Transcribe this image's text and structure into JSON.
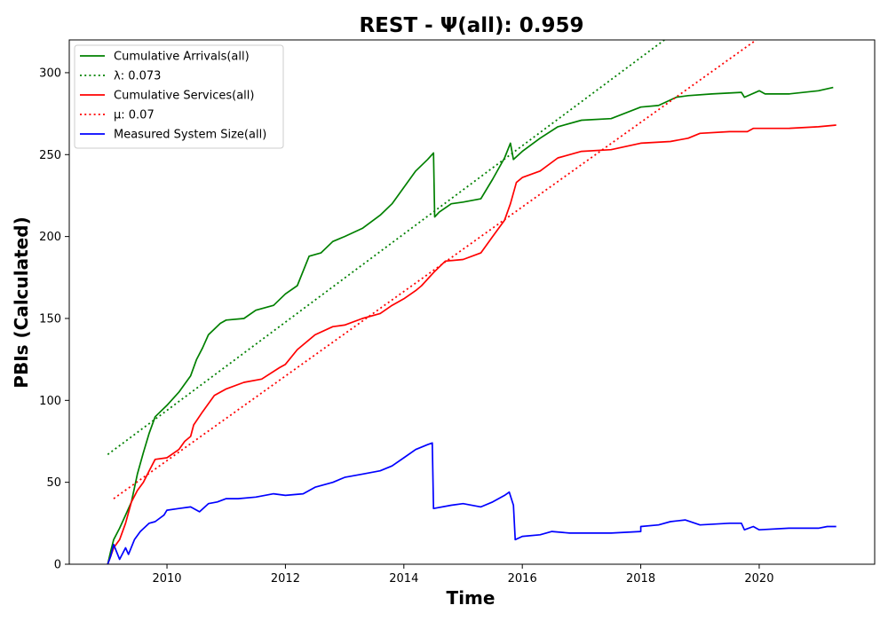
{
  "chart_data": {
    "type": "line",
    "title": "REST -  Ψ(all): 0.959",
    "xlabel": "Time",
    "ylabel": "PBIs (Calculated)",
    "xlim": [
      2008.35,
      2021.95
    ],
    "ylim": [
      0,
      320
    ],
    "x_ticks": [
      2010,
      2012,
      2014,
      2016,
      2018,
      2020
    ],
    "y_ticks": [
      0,
      50,
      100,
      150,
      200,
      250,
      300
    ],
    "grid": false,
    "legend_position": "top-left",
    "series": [
      {
        "name": "Cumulative Arrivals(all)",
        "label": "Cumulative Arrivals(all)",
        "color": "#008000",
        "style": "solid",
        "points": [
          [
            2009.0,
            0
          ],
          [
            2009.05,
            8
          ],
          [
            2009.1,
            15
          ],
          [
            2009.2,
            22
          ],
          [
            2009.3,
            30
          ],
          [
            2009.4,
            38
          ],
          [
            2009.5,
            55
          ],
          [
            2009.6,
            68
          ],
          [
            2009.7,
            80
          ],
          [
            2009.8,
            90
          ],
          [
            2010.0,
            97
          ],
          [
            2010.2,
            105
          ],
          [
            2010.4,
            115
          ],
          [
            2010.5,
            125
          ],
          [
            2010.6,
            132
          ],
          [
            2010.7,
            140
          ],
          [
            2010.9,
            147
          ],
          [
            2011.0,
            149
          ],
          [
            2011.3,
            150
          ],
          [
            2011.5,
            155
          ],
          [
            2011.8,
            158
          ],
          [
            2012.0,
            165
          ],
          [
            2012.2,
            170
          ],
          [
            2012.4,
            188
          ],
          [
            2012.6,
            190
          ],
          [
            2012.8,
            197
          ],
          [
            2013.0,
            200
          ],
          [
            2013.3,
            205
          ],
          [
            2013.6,
            213
          ],
          [
            2013.8,
            220
          ],
          [
            2014.0,
            230
          ],
          [
            2014.2,
            240
          ],
          [
            2014.4,
            247
          ],
          [
            2014.5,
            251
          ],
          [
            2014.52,
            212
          ],
          [
            2014.6,
            215
          ],
          [
            2014.8,
            220
          ],
          [
            2015.0,
            221
          ],
          [
            2015.3,
            223
          ],
          [
            2015.5,
            235
          ],
          [
            2015.7,
            248
          ],
          [
            2015.8,
            257
          ],
          [
            2015.85,
            247
          ],
          [
            2016.0,
            252
          ],
          [
            2016.3,
            260
          ],
          [
            2016.6,
            267
          ],
          [
            2017.0,
            271
          ],
          [
            2017.5,
            272
          ],
          [
            2018.0,
            279
          ],
          [
            2018.3,
            280
          ],
          [
            2018.6,
            285
          ],
          [
            2018.8,
            286
          ],
          [
            2019.2,
            287
          ],
          [
            2019.7,
            288
          ],
          [
            2019.75,
            285
          ],
          [
            2020.0,
            289
          ],
          [
            2020.1,
            287
          ],
          [
            2020.5,
            287
          ],
          [
            2021.0,
            289
          ],
          [
            2021.25,
            291
          ]
        ]
      },
      {
        "name": "λ: 0.073",
        "label": "λ: 0.073",
        "color": "#008000",
        "style": "dotted",
        "points": [
          [
            2009.0,
            67
          ],
          [
            2018.4,
            320
          ]
        ]
      },
      {
        "name": "Cumulative Services(all)",
        "label": "Cumulative Services(all)",
        "color": "#ff0000",
        "style": "solid",
        "points": [
          [
            2009.0,
            0
          ],
          [
            2009.05,
            5
          ],
          [
            2009.1,
            10
          ],
          [
            2009.2,
            15
          ],
          [
            2009.3,
            25
          ],
          [
            2009.4,
            38
          ],
          [
            2009.5,
            45
          ],
          [
            2009.6,
            50
          ],
          [
            2009.7,
            57
          ],
          [
            2009.8,
            64
          ],
          [
            2010.0,
            65
          ],
          [
            2010.2,
            70
          ],
          [
            2010.3,
            75
          ],
          [
            2010.4,
            78
          ],
          [
            2010.45,
            85
          ],
          [
            2010.6,
            93
          ],
          [
            2010.8,
            103
          ],
          [
            2011.0,
            107
          ],
          [
            2011.3,
            111
          ],
          [
            2011.6,
            113
          ],
          [
            2011.9,
            120
          ],
          [
            2012.0,
            122
          ],
          [
            2012.2,
            131
          ],
          [
            2012.5,
            140
          ],
          [
            2012.8,
            145
          ],
          [
            2013.0,
            146
          ],
          [
            2013.3,
            150
          ],
          [
            2013.6,
            153
          ],
          [
            2013.8,
            158
          ],
          [
            2014.0,
            162
          ],
          [
            2014.2,
            167
          ],
          [
            2014.3,
            170
          ],
          [
            2014.5,
            178
          ],
          [
            2014.7,
            185
          ],
          [
            2015.0,
            186
          ],
          [
            2015.3,
            190
          ],
          [
            2015.5,
            200
          ],
          [
            2015.7,
            210
          ],
          [
            2015.8,
            220
          ],
          [
            2015.9,
            233
          ],
          [
            2016.0,
            236
          ],
          [
            2016.3,
            240
          ],
          [
            2016.6,
            248
          ],
          [
            2017.0,
            252
          ],
          [
            2017.5,
            253
          ],
          [
            2018.0,
            257
          ],
          [
            2018.5,
            258
          ],
          [
            2018.8,
            260
          ],
          [
            2019.0,
            263
          ],
          [
            2019.5,
            264
          ],
          [
            2019.8,
            264
          ],
          [
            2019.9,
            266
          ],
          [
            2020.5,
            266
          ],
          [
            2021.0,
            267
          ],
          [
            2021.3,
            268
          ]
        ]
      },
      {
        "name": "μ: 0.07",
        "label": "μ: 0.07",
        "color": "#ff0000",
        "style": "dotted",
        "points": [
          [
            2009.1,
            40
          ],
          [
            2019.95,
            320
          ]
        ]
      },
      {
        "name": "Measured System Size(all)",
        "label": "Measured System Size(all)",
        "color": "#0000ff",
        "style": "solid",
        "points": [
          [
            2009.0,
            0
          ],
          [
            2009.05,
            5
          ],
          [
            2009.1,
            12
          ],
          [
            2009.2,
            3
          ],
          [
            2009.3,
            10
          ],
          [
            2009.35,
            6
          ],
          [
            2009.45,
            15
          ],
          [
            2009.55,
            20
          ],
          [
            2009.7,
            25
          ],
          [
            2009.8,
            26
          ],
          [
            2009.95,
            30
          ],
          [
            2010.0,
            33
          ],
          [
            2010.2,
            34
          ],
          [
            2010.4,
            35
          ],
          [
            2010.55,
            32
          ],
          [
            2010.7,
            37
          ],
          [
            2010.85,
            38
          ],
          [
            2011.0,
            40
          ],
          [
            2011.2,
            40
          ],
          [
            2011.5,
            41
          ],
          [
            2011.8,
            43
          ],
          [
            2012.0,
            42
          ],
          [
            2012.3,
            43
          ],
          [
            2012.5,
            47
          ],
          [
            2012.8,
            50
          ],
          [
            2013.0,
            53
          ],
          [
            2013.3,
            55
          ],
          [
            2013.6,
            57
          ],
          [
            2013.8,
            60
          ],
          [
            2014.0,
            65
          ],
          [
            2014.2,
            70
          ],
          [
            2014.4,
            73
          ],
          [
            2014.48,
            74
          ],
          [
            2014.5,
            34
          ],
          [
            2014.8,
            36
          ],
          [
            2015.0,
            37
          ],
          [
            2015.3,
            35
          ],
          [
            2015.5,
            38
          ],
          [
            2015.7,
            42
          ],
          [
            2015.78,
            44
          ],
          [
            2015.85,
            36
          ],
          [
            2015.88,
            15
          ],
          [
            2016.0,
            17
          ],
          [
            2016.3,
            18
          ],
          [
            2016.5,
            20
          ],
          [
            2016.8,
            19
          ],
          [
            2017.0,
            19
          ],
          [
            2017.5,
            19
          ],
          [
            2018.0,
            20
          ],
          [
            2018.0,
            23
          ],
          [
            2018.3,
            24
          ],
          [
            2018.5,
            26
          ],
          [
            2018.75,
            27
          ],
          [
            2019.0,
            24
          ],
          [
            2019.5,
            25
          ],
          [
            2019.7,
            25
          ],
          [
            2019.75,
            21
          ],
          [
            2019.9,
            23
          ],
          [
            2020.0,
            21
          ],
          [
            2020.5,
            22
          ],
          [
            2021.0,
            22
          ],
          [
            2021.15,
            23
          ],
          [
            2021.3,
            23
          ]
        ]
      }
    ]
  }
}
